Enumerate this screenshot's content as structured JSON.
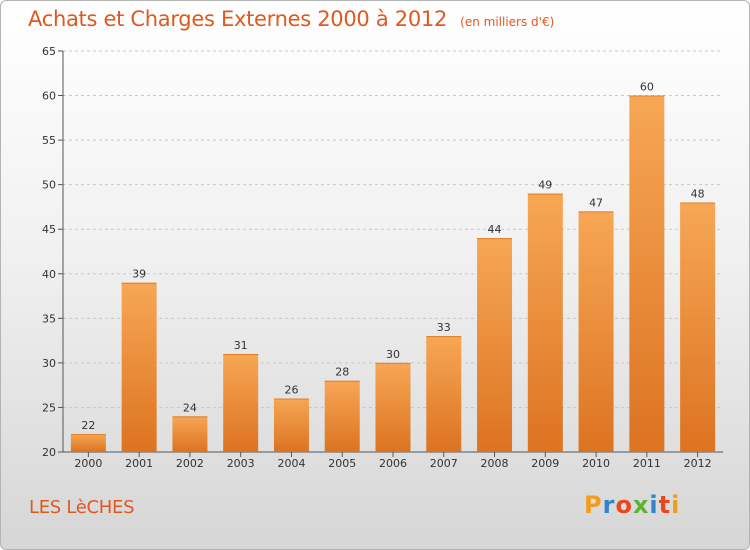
{
  "header": {
    "title": "Achats et Charges Externes 2000 à 2012",
    "unit": "(en milliers d'€)"
  },
  "footer": {
    "commune": "LES LèCHES",
    "logo_letters": [
      "P",
      "r",
      "o",
      "x",
      "i",
      "t",
      "i"
    ],
    "logo_colors": [
      "#f39c1b",
      "#2e86c8",
      "#e8481c",
      "#5ab52f",
      "#2e86c8",
      "#e8481c",
      "#f39c1b"
    ]
  },
  "colors": {
    "bar_light": "#f7a755",
    "bar_dark": "#dc7321",
    "title": "#e0581e"
  },
  "chart_data": {
    "type": "bar",
    "title": "Achats et Charges Externes 2000 à 2012",
    "subtitle": "(en milliers d'€)",
    "categories": [
      "2000",
      "2001",
      "2002",
      "2003",
      "2004",
      "2005",
      "2006",
      "2007",
      "2008",
      "2009",
      "2010",
      "2011",
      "2012"
    ],
    "values": [
      22,
      39,
      24,
      31,
      26,
      28,
      30,
      33,
      44,
      49,
      47,
      60,
      48
    ],
    "xlabel": "",
    "ylabel": "",
    "ylim": [
      20,
      65
    ],
    "yticks": [
      20,
      25,
      30,
      35,
      40,
      45,
      50,
      55,
      60,
      65
    ],
    "grid": "horizontal dashed",
    "legend": "none"
  }
}
